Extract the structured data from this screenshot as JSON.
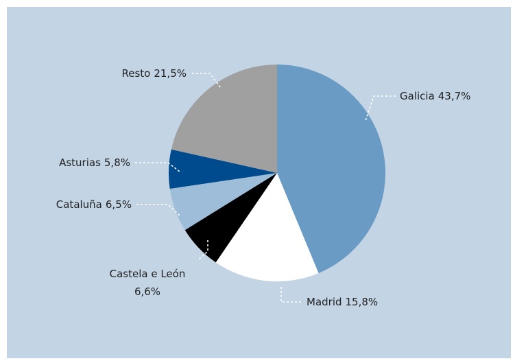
{
  "chart_data": {
    "type": "pie",
    "categories": [
      "Galicia",
      "Madrid",
      "Castela e León",
      "Cataluña",
      "Asturias",
      "Resto"
    ],
    "values": [
      43.7,
      15.8,
      6.6,
      6.5,
      5.8,
      21.5
    ],
    "value_labels": [
      "43,7%",
      "15,8%",
      "6,6%",
      "6,5%",
      "5,8%",
      "21,5%"
    ],
    "colors": [
      "#6a9bc4",
      "#ffffff",
      "#000000",
      "#9dbdd8",
      "#004b8d",
      "#a0a0a0"
    ]
  }
}
